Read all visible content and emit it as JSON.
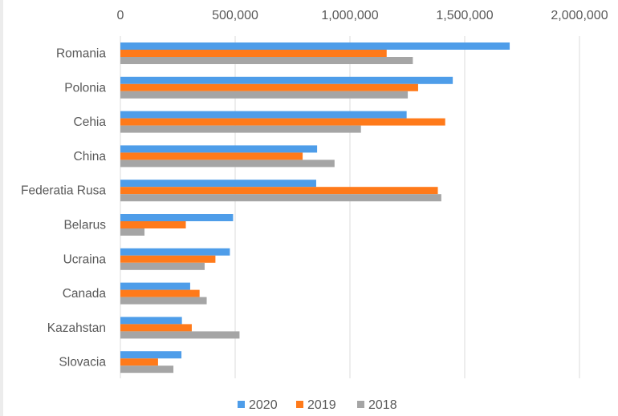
{
  "chart_data": {
    "type": "bar",
    "orientation": "horizontal",
    "title": "",
    "xlabel": "",
    "ylabel": "",
    "xlim": [
      0,
      2000000
    ],
    "x_ticks": [
      0,
      500000,
      1000000,
      1500000,
      2000000
    ],
    "x_tick_labels": [
      "0",
      "500,000",
      "1,000,000",
      "1,500,000",
      "2,000,000"
    ],
    "x_axis_position": "top",
    "grid": true,
    "legend_position": "bottom",
    "categories": [
      "Romania",
      "Polonia",
      "Cehia",
      "China",
      "Federatia Rusa",
      "Belarus",
      "Ucraina",
      "Canada",
      "Kazahstan",
      "Slovacia"
    ],
    "series": [
      {
        "name": "2020",
        "color": "#4e9de9",
        "values": [
          1696000,
          1448000,
          1247000,
          857000,
          853000,
          491000,
          477000,
          304000,
          268000,
          266000
        ]
      },
      {
        "name": "2019",
        "color": "#ff7a1a",
        "values": [
          1160000,
          1297000,
          1415000,
          794000,
          1383000,
          285000,
          414000,
          345000,
          311000,
          164000
        ]
      },
      {
        "name": "2018",
        "color": "#a5a5a5",
        "values": [
          1274000,
          1252000,
          1048000,
          933000,
          1398000,
          105000,
          367000,
          376000,
          519000,
          231000
        ]
      }
    ]
  }
}
